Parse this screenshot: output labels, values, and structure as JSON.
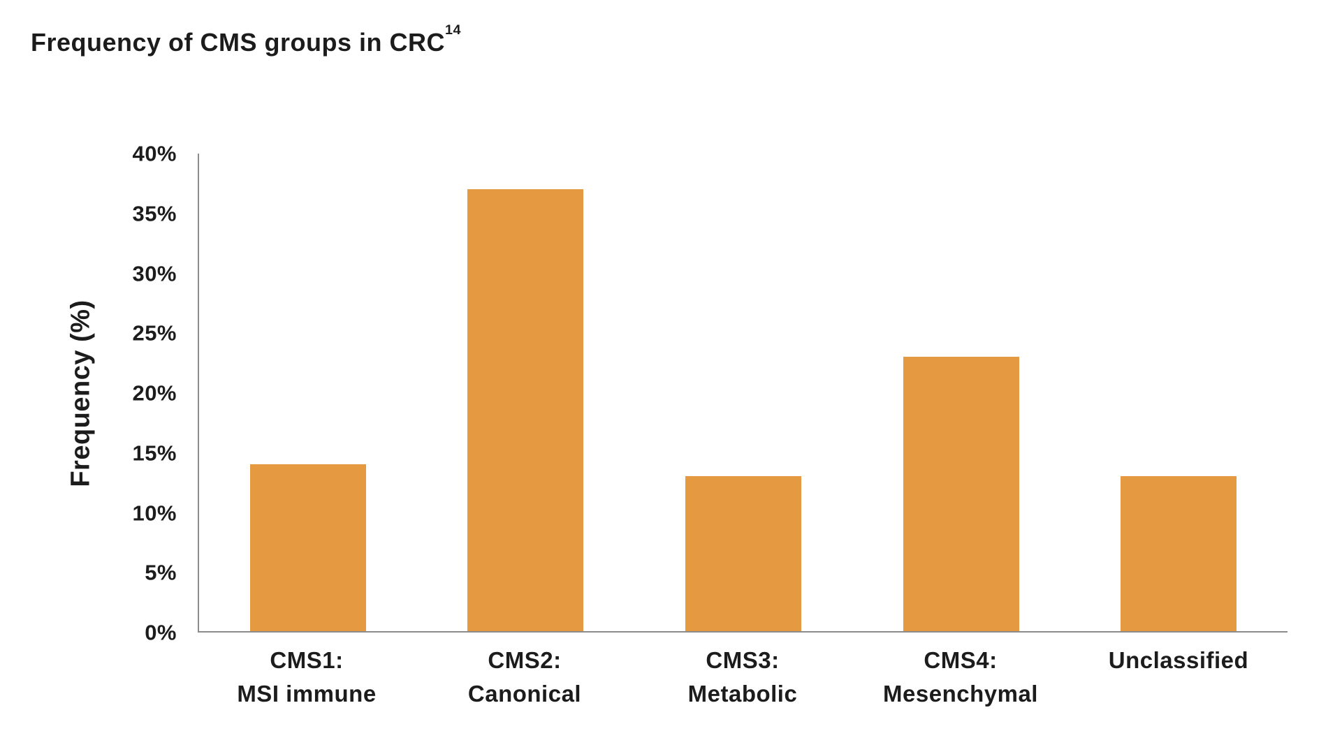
{
  "page": {
    "background": "#FFFFFF"
  },
  "title": {
    "text": "Frequency of CMS groups in CRC",
    "superscript": "14"
  },
  "chart_data": {
    "type": "bar",
    "title": "Frequency of CMS groups in CRC",
    "title_superscript": "14",
    "categories": [
      "CMS1: MSI immune",
      "CMS2: Canonical",
      "CMS3: Metabolic",
      "CMS4: Mesenchymal",
      "Unclassified"
    ],
    "category_lines": [
      [
        "CMS1:",
        "MSI immune"
      ],
      [
        "CMS2:",
        "Canonical"
      ],
      [
        "CMS3:",
        "Metabolic"
      ],
      [
        "CMS4:",
        "Mesenchymal"
      ],
      [
        "Unclassified"
      ]
    ],
    "values": [
      14,
      37,
      13,
      23,
      13
    ],
    "unit": "%",
    "xlabel": "",
    "ylabel": "Frequency (%)",
    "ylim": [
      0,
      40
    ],
    "ytick_step": 5,
    "ytick_labels": [
      "0%",
      "5%",
      "10%",
      "15%",
      "20%",
      "25%",
      "30%",
      "35%",
      "40%"
    ],
    "grid": false,
    "legend": false,
    "bar_color": "#E59A41",
    "axis_color": "#8C8C8C",
    "text_color": "#1C1C1C"
  }
}
